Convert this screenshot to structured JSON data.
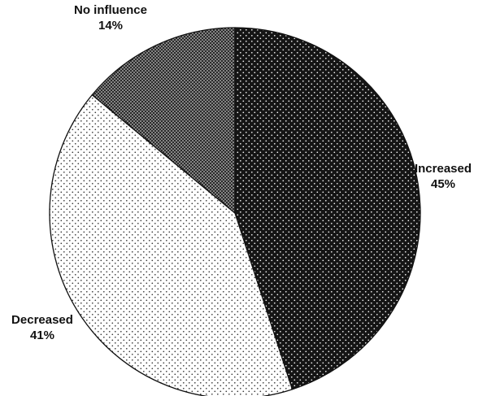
{
  "chart_data": {
    "type": "pie",
    "title": "",
    "start_angle_deg": 0,
    "direction": "clockwise",
    "legend": "none",
    "slices": [
      {
        "label": "Increased",
        "value": 45,
        "value_label": "45%",
        "pattern": "dark-dotted",
        "color": "#151515"
      },
      {
        "label": "Decreased",
        "value": 41,
        "value_label": "41%",
        "pattern": "light-dotted",
        "color": "#ffffff"
      },
      {
        "label": "No influence",
        "value": 14,
        "value_label": "14%",
        "pattern": "dense-dotted",
        "color": "#2a2a2a"
      }
    ]
  }
}
